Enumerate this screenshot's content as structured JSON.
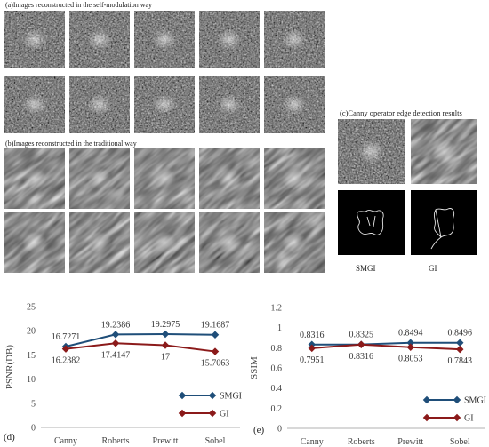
{
  "panel_a": {
    "caption": "(a)Images reconstructed in the self-modulation way"
  },
  "panel_b": {
    "caption": "(b)Images reconstructed in the traditional way"
  },
  "panel_c": {
    "caption": "(c)Canny operator edge detection results",
    "label_smgi": "SMGI",
    "label_gi": "GI"
  },
  "chart_data": [
    {
      "type": "line",
      "panel_label": "(d)",
      "categories": [
        "Canny",
        "Roberts",
        "Prewitt",
        "Sobel"
      ],
      "ylabel": "PSNR(DB)",
      "ylim": [
        0,
        25
      ],
      "yticks": [
        "0",
        "5",
        "10",
        "15",
        "20",
        "25"
      ],
      "series": [
        {
          "name": "SMGI",
          "values": [
            16.7271,
            19.2386,
            19.2975,
            19.1687
          ],
          "labels": [
            "16.7271",
            "19.2386",
            "19.2975",
            "19.1687"
          ],
          "color": "#1f4e79"
        },
        {
          "name": "GI",
          "values": [
            16.2382,
            17.4147,
            17,
            15.7063
          ],
          "labels": [
            "16.2382",
            "17.4147",
            "17",
            "15.7063"
          ],
          "color": "#8b1a1a"
        }
      ],
      "legend": "bottom-right"
    },
    {
      "type": "line",
      "panel_label": "(e)",
      "categories": [
        "Canny",
        "Roberts",
        "Prewitt",
        "Sobel"
      ],
      "ylabel": "SSIM",
      "ylim": [
        0,
        1.2
      ],
      "yticks": [
        "0",
        "0.2",
        "0.4",
        "0.6",
        "0.8",
        "1",
        "1.2"
      ],
      "series": [
        {
          "name": "SMGI",
          "values": [
            0.8316,
            0.8325,
            0.8494,
            0.8496
          ],
          "labels": [
            "0.8316",
            "0.8325",
            "0.8494",
            "0.8496"
          ],
          "color": "#1f4e79"
        },
        {
          "name": "GI",
          "values": [
            0.7951,
            0.8316,
            0.8053,
            0.7843
          ],
          "labels": [
            "0.7951",
            "0.8316",
            "0.8053",
            "0.7843"
          ],
          "color": "#8b1a1a"
        }
      ],
      "legend": "bottom-right"
    }
  ]
}
